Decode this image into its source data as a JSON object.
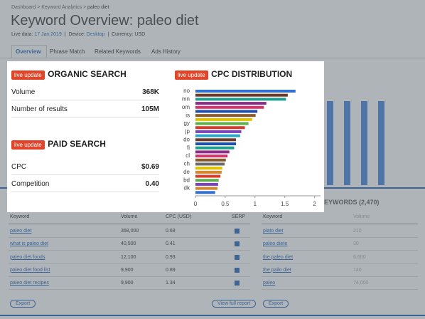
{
  "breadcrumb": [
    "Dashboard",
    "Keyword Analytics",
    "paleo diet"
  ],
  "title": "Keyword Overview: paleo diet",
  "meta": {
    "live_label": "Live data:",
    "live_value": "17 Jan 2019",
    "device_label": "Device:",
    "device_value": "Desktop",
    "currency": "Currency: USD"
  },
  "tabs": [
    "Overview",
    "Phrase Match",
    "Related Keywords",
    "Ads History"
  ],
  "organic": {
    "badge": "live update",
    "title": "ORGANIC SEARCH",
    "rows": [
      [
        "Volume",
        "368K"
      ],
      [
        "Number of results",
        "105M"
      ]
    ]
  },
  "paid": {
    "badge": "live update",
    "title": "PAID SEARCH",
    "rows": [
      [
        "CPC",
        "$0.69"
      ],
      [
        "Competition",
        "0.40"
      ]
    ]
  },
  "cpc": {
    "badge": "live update",
    "title": "CPC DISTRIBUTION",
    "chart_data": {
      "type": "bar",
      "orientation": "horizontal",
      "categories": [
        "no",
        null,
        "mn",
        null,
        "om",
        null,
        "is",
        null,
        "gy",
        null,
        "jp",
        null,
        "do",
        null,
        "fi",
        null,
        "cl",
        null,
        "ch",
        null,
        "de",
        null,
        "bd",
        null,
        "dk",
        null
      ],
      "values": [
        1.68,
        1.55,
        1.52,
        1.19,
        1.15,
        1.04,
        1.01,
        0.95,
        0.89,
        0.83,
        0.77,
        0.75,
        0.68,
        0.68,
        0.65,
        0.57,
        0.54,
        0.51,
        0.49,
        0.45,
        0.44,
        0.42,
        0.39,
        0.38,
        0.37,
        0.33
      ],
      "colors": [
        "#2f6fd0",
        "#6b3a2a",
        "#1e9e8f",
        "#8e2a8a",
        "#d6336c",
        "#1f4fa8",
        "#8a5a2b",
        "#e0c000",
        "#5bb04c",
        "#d93b2b",
        "#7f3fbf",
        "#2aa8c9",
        "#6b3a2a",
        "#1f4fa8",
        "#1e9e8f",
        "#8e2a8a",
        "#d6336c",
        "#8a5a2b",
        "#6b6b6b",
        "#e0c000",
        "#d4862a",
        "#d93b2b",
        "#5bb04c",
        "#7f3fbf",
        "#d4862a",
        "#2f6fd0"
      ],
      "xlim": [
        0,
        2.1
      ],
      "xticks": [
        0,
        0.5,
        1,
        1.5,
        2
      ]
    }
  },
  "phrase": {
    "headers": [
      "Keyword",
      "Volume",
      "CPC (USD)",
      "SERP"
    ],
    "rows": [
      [
        "paleo diet",
        "368,000",
        "0.69"
      ],
      [
        "what is paleo diet",
        "40,500",
        "0.41"
      ],
      [
        "paleo diet foods",
        "12,100",
        "0.93"
      ],
      [
        "paleo diet food list",
        "9,900",
        "0.89"
      ],
      [
        "paleo diet recipes",
        "9,900",
        "1.34"
      ]
    ],
    "export": "Export",
    "full": "View full report"
  },
  "related": {
    "title": "EYWORDS (2,470)",
    "headers": [
      "Keyword",
      "Volume"
    ],
    "rows": [
      [
        "plato diet",
        "210"
      ],
      [
        "paleo diete",
        "30"
      ],
      [
        "the paleo diet",
        "6,600"
      ],
      [
        "the pailo diet",
        "140"
      ],
      [
        "paleo",
        "74,000"
      ]
    ],
    "export": "Export"
  }
}
